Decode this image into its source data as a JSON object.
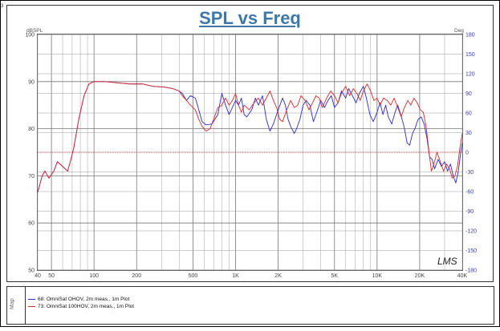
{
  "window": {
    "corner_label": "3"
  },
  "chart_data": {
    "type": "line",
    "title": "SPL vs Freq",
    "ylabel_left": "dBSPL",
    "ylabel_right": "Deg",
    "xscale": "log",
    "xlim": [
      40,
      40000
    ],
    "ylim_left": [
      50,
      100
    ],
    "ylim_right": [
      -180,
      180
    ],
    "x_ticks": [
      {
        "value": 40,
        "label": "40"
      },
      {
        "value": 50,
        "label": "50"
      },
      {
        "value": 100,
        "label": "100"
      },
      {
        "value": 200,
        "label": "200"
      },
      {
        "value": 500,
        "label": "500"
      },
      {
        "value": 1000,
        "label": "1K"
      },
      {
        "value": 2000,
        "label": "2K"
      },
      {
        "value": 5000,
        "label": "5K"
      },
      {
        "value": 10000,
        "label": "10K"
      },
      {
        "value": 20000,
        "label": "20K"
      },
      {
        "value": 40000,
        "label": "40K"
      }
    ],
    "y_left_ticks": [
      {
        "value": 100,
        "label": "100"
      },
      {
        "value": 90,
        "label": "90"
      },
      {
        "value": 80,
        "label": "80"
      },
      {
        "value": 70,
        "label": "70"
      },
      {
        "value": 60,
        "label": "60"
      },
      {
        "value": 50,
        "label": "50"
      }
    ],
    "y_right_ticks": [
      {
        "value": 180,
        "label": "180"
      },
      {
        "value": 150,
        "label": "150"
      },
      {
        "value": 120,
        "label": "120"
      },
      {
        "value": 90,
        "label": "90"
      },
      {
        "value": 60,
        "label": "60"
      },
      {
        "value": 30,
        "label": "30"
      },
      {
        "value": 0,
        "label": "0"
      },
      {
        "value": -30,
        "label": "-30"
      },
      {
        "value": -60,
        "label": "-60"
      },
      {
        "value": -90,
        "label": "-90"
      },
      {
        "value": -120,
        "label": "-120"
      },
      {
        "value": -150,
        "label": "-150"
      },
      {
        "value": -180,
        "label": "-180"
      }
    ],
    "grid": true,
    "reference_line_deg": 0,
    "series": [
      {
        "name": "68: OmniSat OHOV, 2m meas., 1m Plot",
        "color": "#2a2ad8",
        "points": [
          [
            40,
            66.5
          ],
          [
            43,
            70
          ],
          [
            45,
            71
          ],
          [
            48,
            69.5
          ],
          [
            52,
            71
          ],
          [
            55,
            73
          ],
          [
            60,
            72
          ],
          [
            65,
            71
          ],
          [
            68,
            73
          ],
          [
            72,
            76
          ],
          [
            78,
            82
          ],
          [
            85,
            87
          ],
          [
            92,
            89.5
          ],
          [
            100,
            90
          ],
          [
            120,
            90
          ],
          [
            150,
            89.7
          ],
          [
            180,
            89.5
          ],
          [
            220,
            89.5
          ],
          [
            260,
            89
          ],
          [
            320,
            88.8
          ],
          [
            360,
            88.5
          ],
          [
            400,
            88
          ],
          [
            420,
            87.5
          ],
          [
            450,
            86
          ],
          [
            480,
            87
          ],
          [
            520,
            86.5
          ],
          [
            550,
            84
          ],
          [
            580,
            81.5
          ],
          [
            620,
            80.8
          ],
          [
            680,
            81
          ],
          [
            750,
            83
          ],
          [
            800,
            87.5
          ],
          [
            850,
            85
          ],
          [
            900,
            83
          ],
          [
            950,
            84.5
          ],
          [
            1000,
            86
          ],
          [
            1050,
            85
          ],
          [
            1100,
            86.5
          ],
          [
            1150,
            83
          ],
          [
            1200,
            82.5
          ],
          [
            1300,
            84
          ],
          [
            1380,
            86.5
          ],
          [
            1450,
            85
          ],
          [
            1550,
            87
          ],
          [
            1650,
            82
          ],
          [
            1750,
            79.5
          ],
          [
            1850,
            81
          ],
          [
            2000,
            84
          ],
          [
            2150,
            86.5
          ],
          [
            2250,
            85
          ],
          [
            2350,
            82
          ],
          [
            2450,
            80.5
          ],
          [
            2600,
            79
          ],
          [
            2700,
            80
          ],
          [
            2850,
            82
          ],
          [
            3000,
            85
          ],
          [
            3150,
            86
          ],
          [
            3350,
            85
          ],
          [
            3550,
            81.5
          ],
          [
            3750,
            83.5
          ],
          [
            4000,
            86
          ],
          [
            4250,
            84.5
          ],
          [
            4500,
            86
          ],
          [
            4750,
            87
          ],
          [
            5000,
            84.5
          ],
          [
            5300,
            85.5
          ],
          [
            5600,
            88
          ],
          [
            6000,
            86.5
          ],
          [
            6300,
            88.5
          ],
          [
            6700,
            87
          ],
          [
            7100,
            85.5
          ],
          [
            7500,
            87.5
          ],
          [
            8000,
            89
          ],
          [
            8400,
            86.5
          ],
          [
            8900,
            83
          ],
          [
            9400,
            81.5
          ],
          [
            10000,
            83.5
          ],
          [
            10500,
            85.5
          ],
          [
            11000,
            83
          ],
          [
            11500,
            85
          ],
          [
            12000,
            82.5
          ],
          [
            12700,
            81
          ],
          [
            13400,
            83.5
          ],
          [
            14000,
            85
          ],
          [
            14700,
            83
          ],
          [
            15500,
            80.5
          ],
          [
            16300,
            77
          ],
          [
            17000,
            76.5
          ],
          [
            17800,
            79
          ],
          [
            18500,
            80
          ],
          [
            19500,
            82
          ],
          [
            20500,
            82.5
          ],
          [
            21500,
            81
          ],
          [
            22500,
            78
          ],
          [
            23500,
            74
          ],
          [
            24500,
            73.5
          ],
          [
            25500,
            71.5
          ],
          [
            27000,
            73.5
          ],
          [
            28500,
            72
          ],
          [
            30000,
            73
          ],
          [
            31500,
            71
          ],
          [
            33000,
            72.5
          ],
          [
            34500,
            70
          ],
          [
            36000,
            68.5
          ],
          [
            37500,
            71
          ],
          [
            39000,
            75
          ],
          [
            40000,
            77
          ]
        ]
      },
      {
        "name": "73: OmniSat 100HOV, 2m meas., 1m Plot",
        "color": "#e02828",
        "points": [
          [
            40,
            66.5
          ],
          [
            43,
            70
          ],
          [
            45,
            71
          ],
          [
            48,
            69.5
          ],
          [
            52,
            71
          ],
          [
            55,
            73
          ],
          [
            60,
            72
          ],
          [
            65,
            71
          ],
          [
            68,
            73
          ],
          [
            72,
            76
          ],
          [
            78,
            82
          ],
          [
            85,
            87
          ],
          [
            92,
            89.5
          ],
          [
            100,
            90
          ],
          [
            120,
            90
          ],
          [
            150,
            89.7
          ],
          [
            180,
            89.5
          ],
          [
            220,
            89.5
          ],
          [
            260,
            89
          ],
          [
            320,
            88.8
          ],
          [
            360,
            88.5
          ],
          [
            400,
            88
          ],
          [
            420,
            87
          ],
          [
            450,
            86
          ],
          [
            480,
            85
          ],
          [
            520,
            84
          ],
          [
            550,
            82
          ],
          [
            580,
            80.5
          ],
          [
            620,
            79.5
          ],
          [
            660,
            80
          ],
          [
            700,
            82
          ],
          [
            750,
            84.5
          ],
          [
            800,
            85
          ],
          [
            850,
            86.5
          ],
          [
            900,
            85
          ],
          [
            950,
            86
          ],
          [
            1000,
            87.5
          ],
          [
            1050,
            85
          ],
          [
            1100,
            83.5
          ],
          [
            1150,
            85
          ],
          [
            1250,
            84
          ],
          [
            1350,
            85.5
          ],
          [
            1450,
            86.5
          ],
          [
            1550,
            85
          ],
          [
            1650,
            86.5
          ],
          [
            1750,
            88
          ],
          [
            1850,
            86
          ],
          [
            1950,
            84.5
          ],
          [
            2050,
            82
          ],
          [
            2150,
            81.5
          ],
          [
            2300,
            84
          ],
          [
            2450,
            86
          ],
          [
            2600,
            84.5
          ],
          [
            2750,
            85
          ],
          [
            2900,
            87
          ],
          [
            3100,
            86
          ],
          [
            3300,
            84
          ],
          [
            3500,
            85.5
          ],
          [
            3700,
            87
          ],
          [
            3900,
            86.5
          ],
          [
            4100,
            84.5
          ],
          [
            4400,
            86.5
          ],
          [
            4700,
            88
          ],
          [
            5000,
            87
          ],
          [
            5300,
            85.5
          ],
          [
            5600,
            87.5
          ],
          [
            6000,
            89
          ],
          [
            6400,
            87
          ],
          [
            6800,
            88.5
          ],
          [
            7200,
            87.5
          ],
          [
            7600,
            86
          ],
          [
            8000,
            88
          ],
          [
            8500,
            89.5
          ],
          [
            9000,
            88
          ],
          [
            9500,
            86
          ],
          [
            10000,
            86.5
          ],
          [
            10500,
            85
          ],
          [
            11100,
            86.5
          ],
          [
            11800,
            86
          ],
          [
            12500,
            85
          ],
          [
            13200,
            86.5
          ],
          [
            14000,
            84.5
          ],
          [
            14800,
            82.5
          ],
          [
            15600,
            84.5
          ],
          [
            16500,
            86
          ],
          [
            17300,
            85
          ],
          [
            18200,
            86.5
          ],
          [
            19200,
            85.5
          ],
          [
            20200,
            84
          ],
          [
            21200,
            83.5
          ],
          [
            22200,
            80.5
          ],
          [
            23200,
            75.5
          ],
          [
            24200,
            71
          ],
          [
            25200,
            72.5
          ],
          [
            26500,
            75
          ],
          [
            28000,
            73
          ],
          [
            29500,
            71
          ],
          [
            31000,
            72.5
          ],
          [
            32500,
            71.5
          ],
          [
            34000,
            69.5
          ],
          [
            35500,
            70
          ],
          [
            37000,
            72
          ],
          [
            38500,
            76
          ],
          [
            40000,
            79
          ]
        ]
      }
    ]
  },
  "plot": {
    "watermark": "LMS"
  },
  "legend": {
    "side_label": "Map",
    "entries": [
      {
        "label": "68: OmniSat OHOV, 2m meas., 1m Plot",
        "color": "#2a2ad8"
      },
      {
        "label": "73: OmniSat 100HOV, 2m meas., 1m Plot",
        "color": "#e02828"
      }
    ]
  }
}
